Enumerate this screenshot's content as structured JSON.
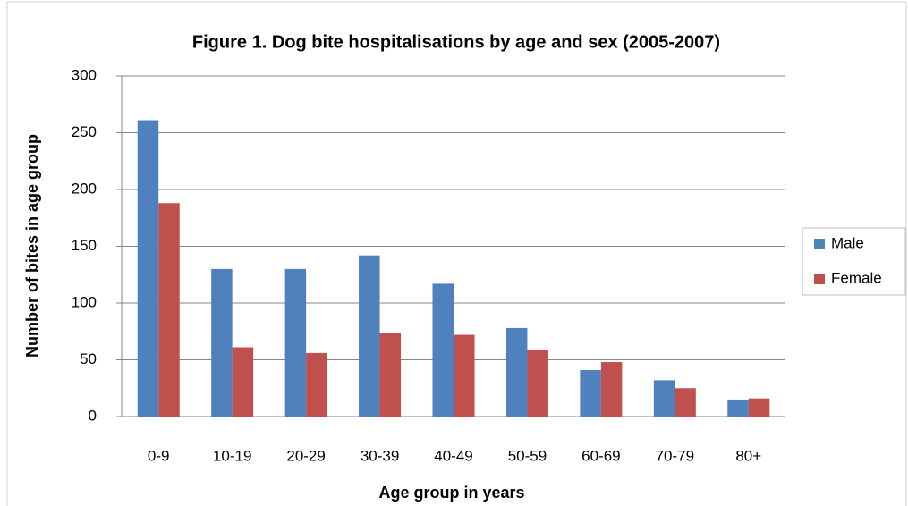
{
  "chart_data": {
    "type": "bar",
    "title": "Figure 1. Dog bite hospitalisations by age and sex (2005-2007)",
    "x_label": "Age group in years",
    "y_label": "Number of bites in age group",
    "categories": [
      "0-9",
      "10-19",
      "20-29",
      "30-39",
      "40-49",
      "50-59",
      "60-69",
      "70-79",
      "80+"
    ],
    "series": [
      {
        "name": "Male",
        "color": "#4f81bd",
        "values": [
          261,
          130,
          130,
          142,
          117,
          78,
          41,
          32,
          15
        ]
      },
      {
        "name": "Female",
        "color": "#c0504d",
        "values": [
          188,
          61,
          56,
          74,
          72,
          59,
          48,
          25,
          16
        ]
      }
    ],
    "ylim": [
      0,
      300
    ],
    "yticks": [
      0,
      50,
      100,
      150,
      200,
      250,
      300
    ],
    "grid": true,
    "legend": "right"
  }
}
